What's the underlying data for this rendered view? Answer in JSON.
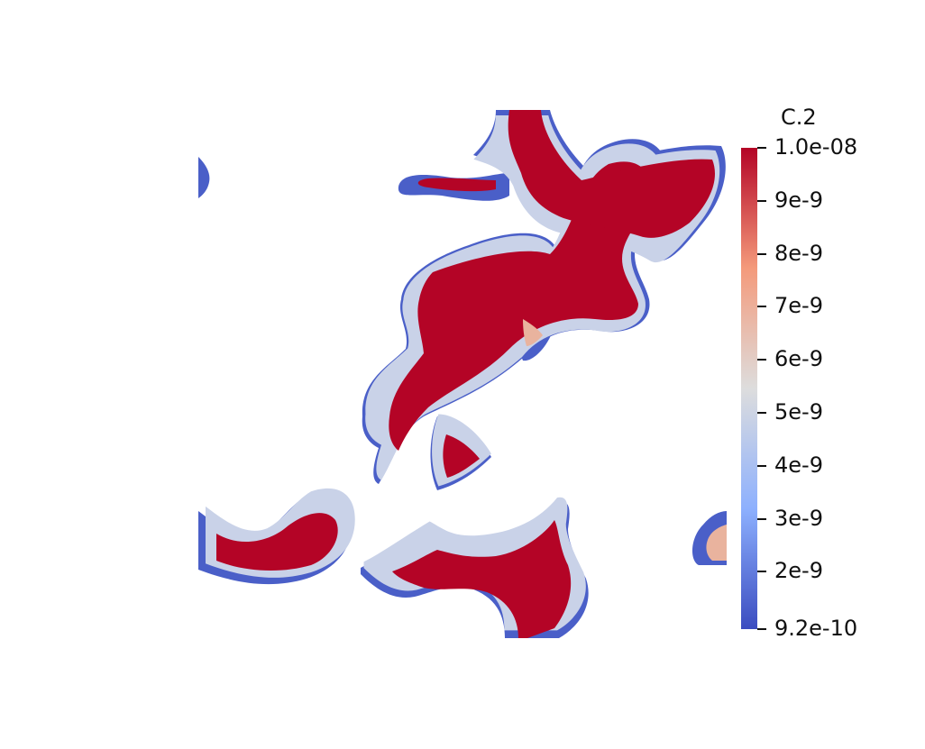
{
  "scalar_bar": {
    "title": "C.2",
    "min": 9.2e-10,
    "max": 1e-08,
    "colormap": "Cool to Warm",
    "colors": {
      "low": "#3b4cc0",
      "mid": "#dddddd",
      "high": "#b40426"
    },
    "ticks": [
      {
        "label": "1.0e-08",
        "value": 1e-08
      },
      {
        "label": "9e-9",
        "value": 9e-09
      },
      {
        "label": "8e-9",
        "value": 8e-09
      },
      {
        "label": "7e-9",
        "value": 7e-09
      },
      {
        "label": "6e-9",
        "value": 6e-09
      },
      {
        "label": "5e-9",
        "value": 5e-09
      },
      {
        "label": "4e-9",
        "value": 4e-09
      },
      {
        "label": "3e-9",
        "value": 3e-09
      },
      {
        "label": "2e-9",
        "value": 2e-09
      },
      {
        "label": "9.2e-10",
        "value": 9.2e-10
      }
    ]
  }
}
